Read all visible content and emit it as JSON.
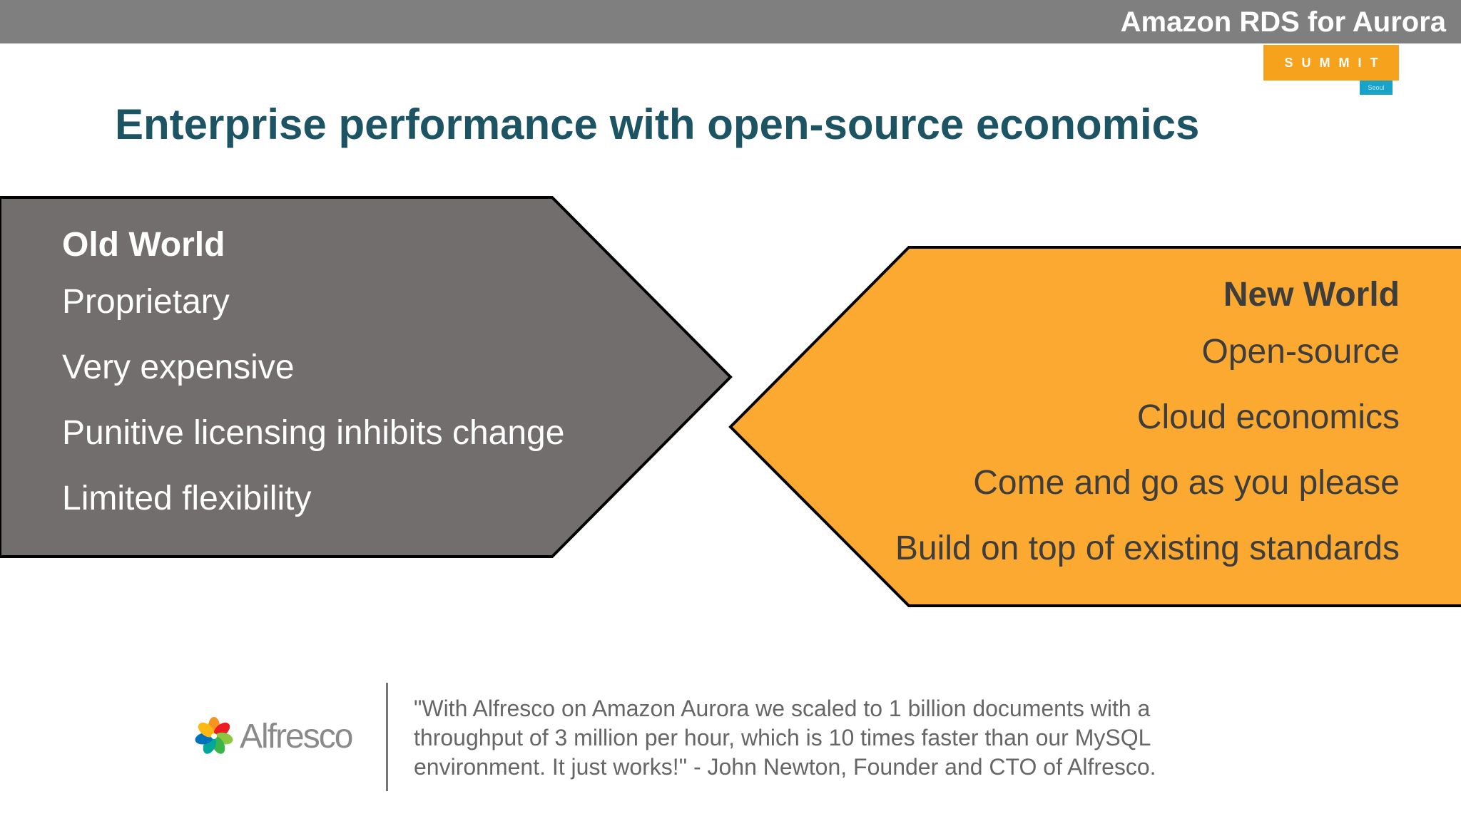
{
  "header": {
    "title": "Amazon RDS for Aurora",
    "event_logo": "SUMMIT",
    "event_location": "Seoul"
  },
  "slide": {
    "title": "Enterprise performance with open-source economics"
  },
  "old_world": {
    "heading": "Old World",
    "items": [
      "Proprietary",
      "Very expensive",
      "Punitive licensing inhibits change",
      "Limited flexibility"
    ],
    "color": "#736e6e"
  },
  "new_world": {
    "heading": "New World",
    "items": [
      "Open-source",
      "Cloud economics",
      "Come and go as you please",
      "Build on top of existing standards"
    ],
    "color": "#fba930"
  },
  "testimonial": {
    "logo_text": "Alfresco",
    "quote": "\"With Alfresco on Amazon Aurora we scaled to 1 billion documents with a throughput of 3 million per hour, which is 10 times faster than our MySQL environment. It just works!\" - John Newton, Founder and CTO of Alfresco."
  },
  "colors": {
    "title": "#1c5464",
    "header_bar": "#7f7f7f",
    "summit_orange": "#f6a21c"
  }
}
